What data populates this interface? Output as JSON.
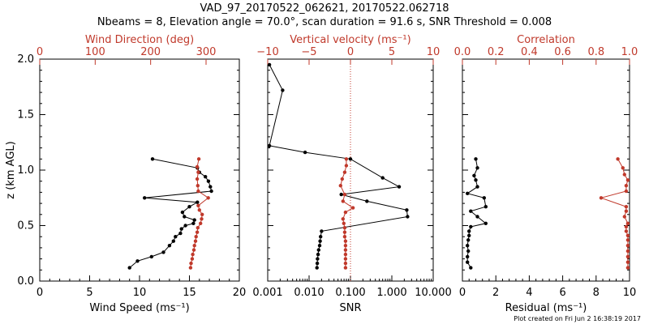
{
  "title_line1": "VAD_97_20170522_062621, 20170522.062718",
  "title_line2": "Nbeams = 8, Elevation angle = 70.0°, scan duration = 91.6 s, SNR Threshold = 0.008",
  "footer": "Plot created on Fri Jun  2 16:38:19 2017",
  "colors": {
    "primary": "#000000",
    "secondary": "#c0392b"
  },
  "chart_data": [
    {
      "type": "scatter",
      "panel": "wind",
      "ylabel": "z (km AGL)",
      "ylim": [
        0,
        2
      ],
      "yticks": [
        "0.0",
        "0.5",
        "1.0",
        "1.5",
        "2.0"
      ],
      "bottom_axis": {
        "label": "Wind Speed (ms⁻¹)",
        "range": [
          0,
          20
        ],
        "ticks": [
          "0",
          "5",
          "10",
          "15",
          "20"
        ]
      },
      "top_axis": {
        "label": "Wind Direction (deg)",
        "range": [
          0,
          360
        ],
        "ticks": [
          "0",
          "100",
          "200",
          "300"
        ],
        "tick_values": [
          0,
          100,
          200,
          300
        ]
      },
      "series": [
        {
          "axis": "bottom",
          "color": "#000000",
          "points": [
            [
              9.0,
              0.12
            ],
            [
              9.8,
              0.18
            ],
            [
              11.2,
              0.22
            ],
            [
              12.4,
              0.26
            ],
            [
              13.0,
              0.32
            ],
            [
              13.4,
              0.36
            ],
            [
              13.6,
              0.4
            ],
            [
              14.1,
              0.43
            ],
            [
              14.2,
              0.47
            ],
            [
              14.6,
              0.5
            ],
            [
              15.4,
              0.52
            ],
            [
              15.5,
              0.55
            ],
            [
              14.5,
              0.58
            ],
            [
              14.3,
              0.62
            ],
            [
              15.0,
              0.67
            ],
            [
              15.8,
              0.71
            ],
            [
              10.5,
              0.75
            ],
            [
              17.2,
              0.81
            ],
            [
              17.1,
              0.85
            ],
            [
              16.9,
              0.9
            ],
            [
              16.6,
              0.94
            ],
            [
              16.0,
              0.98
            ],
            [
              15.8,
              1.02
            ],
            [
              11.3,
              1.1
            ]
          ]
        },
        {
          "axis": "top",
          "color": "#c0392b",
          "points": [
            [
              272,
              0.12
            ],
            [
              273,
              0.16
            ],
            [
              275,
              0.2
            ],
            [
              276,
              0.24
            ],
            [
              278,
              0.28
            ],
            [
              279,
              0.32
            ],
            [
              281,
              0.36
            ],
            [
              282,
              0.4
            ],
            [
              284,
              0.44
            ],
            [
              285,
              0.48
            ],
            [
              290,
              0.52
            ],
            [
              292,
              0.56
            ],
            [
              293,
              0.6
            ],
            [
              288,
              0.64
            ],
            [
              286,
              0.68
            ],
            [
              304,
              0.75
            ],
            [
              286,
              0.81
            ],
            [
              285,
              0.86
            ],
            [
              284,
              0.92
            ],
            [
              286,
              0.98
            ],
            [
              284,
              1.03
            ],
            [
              287,
              1.1
            ]
          ]
        }
      ]
    },
    {
      "type": "scatter",
      "panel": "vertical",
      "ylim": [
        0,
        2
      ],
      "bottom_axis": {
        "label": "SNR",
        "scale": "log",
        "range": [
          0.001,
          10
        ],
        "ticks": [
          "0.001",
          "0.010",
          "0.100",
          "1.000",
          "10.000"
        ],
        "tick_values": [
          0.001,
          0.01,
          0.1,
          1,
          10
        ]
      },
      "top_axis": {
        "label": "Vertical velocity (ms⁻¹)",
        "range": [
          -10,
          10
        ],
        "ticks": [
          "−10",
          "−5",
          "0",
          "5",
          "10"
        ],
        "tick_values": [
          -10,
          -5,
          0,
          5,
          10
        ]
      },
      "zero_reference": 0,
      "series": [
        {
          "axis": "bottom",
          "color": "#000000",
          "points": [
            [
              0.0155,
              0.12
            ],
            [
              0.0158,
              0.16
            ],
            [
              0.016,
              0.2
            ],
            [
              0.0165,
              0.24
            ],
            [
              0.017,
              0.28
            ],
            [
              0.018,
              0.32
            ],
            [
              0.0185,
              0.36
            ],
            [
              0.019,
              0.4
            ],
            [
              0.02,
              0.45
            ],
            [
              2.4,
              0.58
            ],
            [
              2.3,
              0.64
            ],
            [
              0.25,
              0.72
            ],
            [
              0.06,
              0.78
            ],
            [
              1.5,
              0.85
            ],
            [
              0.6,
              0.93
            ],
            [
              0.1,
              1.1
            ],
            [
              0.008,
              1.16
            ],
            [
              0.0011,
              1.22
            ],
            [
              0.0023,
              1.72
            ],
            [
              0.0011,
              1.95
            ]
          ]
        },
        {
          "axis": "top",
          "color": "#c0392b",
          "points": [
            [
              -0.6,
              0.12
            ],
            [
              -0.6,
              0.16
            ],
            [
              -0.6,
              0.2
            ],
            [
              -0.6,
              0.24
            ],
            [
              -0.6,
              0.28
            ],
            [
              -0.6,
              0.32
            ],
            [
              -0.6,
              0.36
            ],
            [
              -0.7,
              0.4
            ],
            [
              -0.7,
              0.44
            ],
            [
              -0.7,
              0.48
            ],
            [
              -0.8,
              0.52
            ],
            [
              -0.9,
              0.56
            ],
            [
              -0.6,
              0.62
            ],
            [
              0.3,
              0.66
            ],
            [
              -0.9,
              0.72
            ],
            [
              -0.7,
              0.78
            ],
            [
              -1.2,
              0.86
            ],
            [
              -1.0,
              0.92
            ],
            [
              -0.7,
              0.98
            ],
            [
              -0.5,
              1.04
            ],
            [
              -0.5,
              1.1
            ]
          ]
        }
      ]
    },
    {
      "type": "scatter",
      "panel": "residual",
      "ylim": [
        0,
        2
      ],
      "bottom_axis": {
        "label": "Residual (ms⁻¹)",
        "range": [
          0,
          10
        ],
        "ticks": [
          "0",
          "2",
          "4",
          "6",
          "8",
          "10"
        ]
      },
      "top_axis": {
        "label": "Correlation",
        "range": [
          0,
          1
        ],
        "ticks": [
          "0.0",
          "0.2",
          "0.4",
          "0.6",
          "0.8",
          "1.0"
        ],
        "tick_values": [
          0,
          0.2,
          0.4,
          0.6,
          0.8,
          1.0
        ]
      },
      "series": [
        {
          "axis": "bottom",
          "color": "#000000",
          "points": [
            [
              0.5,
              0.12
            ],
            [
              0.3,
              0.17
            ],
            [
              0.3,
              0.22
            ],
            [
              0.35,
              0.27
            ],
            [
              0.3,
              0.32
            ],
            [
              0.35,
              0.37
            ],
            [
              0.4,
              0.41
            ],
            [
              0.4,
              0.45
            ],
            [
              0.5,
              0.49
            ],
            [
              1.4,
              0.52
            ],
            [
              0.9,
              0.58
            ],
            [
              0.5,
              0.63
            ],
            [
              1.4,
              0.67
            ],
            [
              1.3,
              0.75
            ],
            [
              0.3,
              0.79
            ],
            [
              0.9,
              0.85
            ],
            [
              0.8,
              0.91
            ],
            [
              0.7,
              0.95
            ],
            [
              0.9,
              1.02
            ],
            [
              0.8,
              1.1
            ]
          ]
        },
        {
          "axis": "top",
          "color": "#c0392b",
          "points": [
            [
              0.99,
              0.12
            ],
            [
              0.99,
              0.17
            ],
            [
              0.99,
              0.22
            ],
            [
              0.99,
              0.27
            ],
            [
              0.99,
              0.32
            ],
            [
              0.99,
              0.37
            ],
            [
              0.99,
              0.41
            ],
            [
              0.98,
              0.45
            ],
            [
              0.98,
              0.49
            ],
            [
              0.99,
              0.52
            ],
            [
              0.97,
              0.58
            ],
            [
              0.98,
              0.63
            ],
            [
              0.98,
              0.67
            ],
            [
              0.83,
              0.75
            ],
            [
              0.98,
              0.81
            ],
            [
              0.98,
              0.86
            ],
            [
              0.99,
              0.91
            ],
            [
              0.97,
              0.96
            ],
            [
              0.96,
              1.02
            ],
            [
              0.93,
              1.1
            ]
          ]
        }
      ]
    }
  ]
}
